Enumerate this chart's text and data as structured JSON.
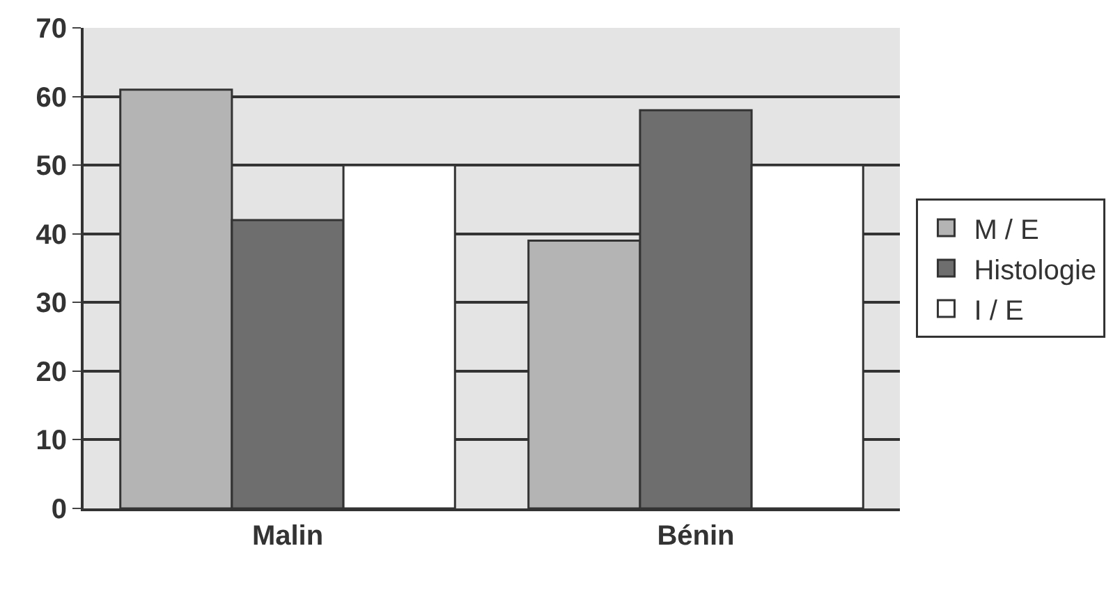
{
  "chart_data": {
    "type": "bar",
    "categories": [
      "Malin",
      "Bénin"
    ],
    "series": [
      {
        "name": "M / E",
        "color": "#b4b4b4",
        "values": [
          61,
          39
        ]
      },
      {
        "name": "Histologie",
        "color": "#6e6e6e",
        "values": [
          42,
          58
        ]
      },
      {
        "name": "I / E",
        "color": "#ffffff",
        "values": [
          50,
          50
        ]
      }
    ],
    "ylim": [
      0,
      70
    ],
    "yticks": [
      0,
      10,
      20,
      30,
      40,
      50,
      60,
      70
    ],
    "grid": "y",
    "legend": "right"
  }
}
